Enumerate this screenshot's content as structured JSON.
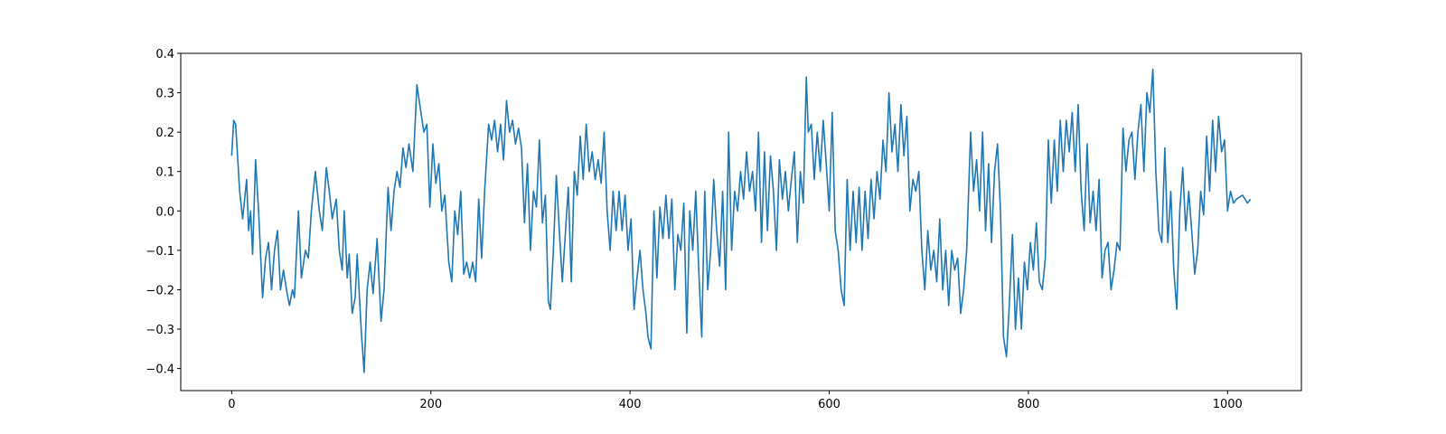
{
  "chart_data": {
    "type": "line",
    "color": "#1f77b4",
    "xlim": [
      -51.15,
      1074.15
    ],
    "ylim": [
      -0.456,
      0.4
    ],
    "xticks": [
      0,
      200,
      400,
      600,
      800,
      1000
    ],
    "yticks": [
      {
        "value": -0.4,
        "label": "−0.4"
      },
      {
        "value": -0.3,
        "label": "−0.3"
      },
      {
        "value": -0.2,
        "label": "−0.2"
      },
      {
        "value": -0.1,
        "label": "−0.1"
      },
      {
        "value": 0,
        "label": "0.0"
      },
      0.1,
      0.2,
      0.3,
      0.4
    ],
    "x": [
      0,
      2,
      4,
      8,
      11,
      15,
      17,
      19,
      21,
      24,
      27,
      31,
      34,
      37,
      40,
      43,
      46,
      49,
      52,
      55,
      58,
      61,
      63,
      67,
      70,
      74,
      77,
      80,
      84,
      88,
      91,
      95,
      98,
      101,
      105,
      108,
      111,
      113,
      116,
      118,
      121,
      124,
      126,
      130,
      133,
      136,
      139,
      142,
      146,
      150,
      153,
      157,
      160,
      163,
      166,
      169,
      172,
      175,
      178,
      182,
      186,
      190,
      193,
      196,
      199,
      202,
      205,
      208,
      211,
      214,
      218,
      221,
      224,
      227,
      230,
      233,
      236,
      239,
      242,
      245,
      248,
      251,
      254,
      258,
      261,
      264,
      267,
      270,
      273,
      276,
      279,
      282,
      285,
      288,
      291,
      294,
      297,
      300,
      303,
      306,
      309,
      312,
      315,
      318,
      320,
      323,
      326,
      329,
      332,
      335,
      338,
      341,
      344,
      347,
      350,
      353,
      356,
      359,
      362,
      365,
      368,
      371,
      374,
      377,
      380,
      383,
      386,
      389,
      392,
      395,
      398,
      401,
      404,
      407,
      410,
      413,
      416,
      418,
      421,
      424,
      427,
      430,
      433,
      436,
      439,
      442,
      445,
      448,
      451,
      454,
      457,
      460,
      463,
      466,
      469,
      472,
      475,
      478,
      481,
      484,
      487,
      490,
      493,
      496,
      499,
      502,
      505,
      508,
      511,
      514,
      517,
      520,
      523,
      526,
      529,
      532,
      535,
      538,
      541,
      544,
      547,
      550,
      553,
      556,
      559,
      562,
      565,
      568,
      571,
      574,
      577,
      579,
      582,
      585,
      588,
      591,
      594,
      597,
      600,
      603,
      606,
      609,
      612,
      615,
      618,
      621,
      624,
      627,
      630,
      633,
      636,
      639,
      642,
      645,
      648,
      651,
      654,
      657,
      660,
      663,
      666,
      669,
      672,
      675,
      678,
      681,
      684,
      687,
      690,
      693,
      696,
      699,
      702,
      705,
      708,
      711,
      714,
      717,
      720,
      723,
      726,
      729,
      732,
      735,
      738,
      742,
      745,
      748,
      751,
      754,
      757,
      760,
      763,
      766,
      769,
      772,
      775,
      778,
      781,
      784,
      787,
      790,
      793,
      796,
      799,
      802,
      805,
      808,
      811,
      814,
      817,
      820,
      823,
      826,
      829,
      832,
      835,
      838,
      841,
      844,
      847,
      850,
      853,
      856,
      859,
      862,
      865,
      868,
      871,
      874,
      877,
      880,
      883,
      886,
      889,
      892,
      895,
      898,
      901,
      904,
      907,
      910,
      913,
      916,
      919,
      922,
      925,
      928,
      931,
      934,
      937,
      940,
      943,
      946,
      949,
      952,
      955,
      958,
      961,
      964,
      967,
      970,
      973,
      976,
      979,
      982,
      985,
      988,
      991,
      994,
      997,
      1000,
      1003,
      1006,
      1009,
      1015,
      1020,
      1023
    ],
    "values": [
      0.14,
      0.23,
      0.22,
      0.05,
      -0.02,
      0.08,
      -0.05,
      0.0,
      -0.11,
      0.13,
      0.0,
      -0.22,
      -0.12,
      -0.08,
      -0.2,
      -0.1,
      -0.05,
      -0.2,
      -0.15,
      -0.2,
      -0.24,
      -0.2,
      -0.22,
      0.0,
      -0.17,
      -0.1,
      -0.12,
      0.0,
      0.1,
      0.0,
      -0.05,
      0.11,
      0.05,
      -0.02,
      0.03,
      -0.1,
      -0.15,
      0.0,
      -0.17,
      -0.11,
      -0.26,
      -0.22,
      -0.11,
      -0.3,
      -0.41,
      -0.2,
      -0.13,
      -0.21,
      -0.07,
      -0.28,
      -0.2,
      0.06,
      -0.05,
      0.05,
      0.1,
      0.06,
      0.16,
      0.11,
      0.17,
      0.1,
      0.32,
      0.25,
      0.2,
      0.22,
      0.01,
      0.17,
      0.07,
      0.12,
      0.0,
      0.04,
      -0.13,
      -0.18,
      0.0,
      -0.06,
      0.05,
      -0.16,
      -0.13,
      -0.17,
      -0.13,
      -0.18,
      0.03,
      -0.12,
      0.05,
      0.22,
      0.18,
      0.23,
      0.15,
      0.22,
      0.13,
      0.28,
      0.2,
      0.23,
      0.17,
      0.21,
      0.16,
      -0.03,
      0.12,
      -0.1,
      0.05,
      0.01,
      0.18,
      -0.03,
      0.04,
      -0.23,
      -0.25,
      -0.1,
      0.09,
      -0.05,
      -0.18,
      -0.06,
      0.06,
      -0.18,
      0.1,
      0.04,
      0.19,
      0.08,
      0.22,
      0.1,
      0.15,
      0.08,
      0.13,
      0.07,
      0.2,
      0.0,
      -0.1,
      0.05,
      -0.05,
      0.05,
      -0.05,
      0.04,
      -0.1,
      -0.02,
      -0.25,
      -0.17,
      -0.1,
      -0.2,
      -0.26,
      -0.32,
      -0.35,
      0.0,
      -0.17,
      0.01,
      -0.07,
      0.04,
      -0.07,
      0.03,
      -0.2,
      -0.06,
      -0.1,
      0.02,
      -0.31,
      0.0,
      -0.1,
      0.05,
      -0.15,
      -0.32,
      0.05,
      -0.2,
      -0.1,
      0.08,
      -0.05,
      -0.14,
      0.05,
      -0.2,
      0.2,
      -0.1,
      0.05,
      0.0,
      0.1,
      0.03,
      0.15,
      0.05,
      0.1,
      0.0,
      0.2,
      -0.08,
      0.15,
      -0.05,
      0.14,
      0.05,
      -0.1,
      0.13,
      0.03,
      0.1,
      0.0,
      0.08,
      0.15,
      -0.08,
      0.1,
      0.02,
      0.34,
      0.2,
      0.22,
      0.08,
      0.2,
      0.1,
      0.23,
      0.12,
      0.0,
      0.25,
      -0.05,
      -0.1,
      -0.2,
      -0.24,
      0.08,
      -0.1,
      0.05,
      -0.08,
      0.06,
      -0.1,
      0.05,
      -0.07,
      0.08,
      -0.02,
      0.1,
      0.03,
      0.18,
      0.1,
      0.3,
      0.15,
      0.22,
      0.1,
      0.27,
      0.14,
      0.24,
      0.0,
      0.08,
      0.05,
      0.1,
      -0.1,
      -0.2,
      -0.05,
      -0.15,
      -0.1,
      -0.18,
      -0.02,
      -0.2,
      -0.1,
      -0.24,
      -0.1,
      -0.15,
      -0.12,
      -0.26,
      -0.2,
      -0.1,
      0.2,
      0.05,
      0.13,
      0.0,
      0.2,
      -0.05,
      0.12,
      -0.08,
      0.1,
      0.17,
      0.0,
      -0.32,
      -0.37,
      -0.23,
      -0.06,
      -0.3,
      -0.17,
      -0.3,
      -0.13,
      -0.2,
      -0.08,
      -0.15,
      -0.03,
      -0.18,
      -0.2,
      -0.12,
      0.18,
      0.02,
      0.18,
      0.05,
      0.23,
      0.1,
      0.23,
      0.15,
      0.25,
      0.1,
      0.27,
      0.05,
      -0.05,
      0.17,
      -0.03,
      0.05,
      -0.05,
      0.08,
      -0.17,
      -0.1,
      -0.08,
      -0.2,
      -0.15,
      -0.08,
      -0.1,
      0.21,
      0.1,
      0.18,
      0.2,
      0.08,
      0.2,
      0.27,
      0.1,
      0.3,
      0.25,
      0.36,
      0.1,
      -0.05,
      -0.08,
      0.16,
      -0.08,
      0.05,
      -0.15,
      -0.25,
      0.0,
      0.11,
      -0.05,
      0.05,
      -0.05,
      -0.16,
      -0.1,
      0.05,
      -0.01,
      0.19,
      0.05,
      0.23,
      0.1,
      0.24,
      0.15,
      0.18,
      0.0,
      0.05,
      0.02,
      0.03,
      0.04,
      0.02,
      0.03
    ]
  }
}
